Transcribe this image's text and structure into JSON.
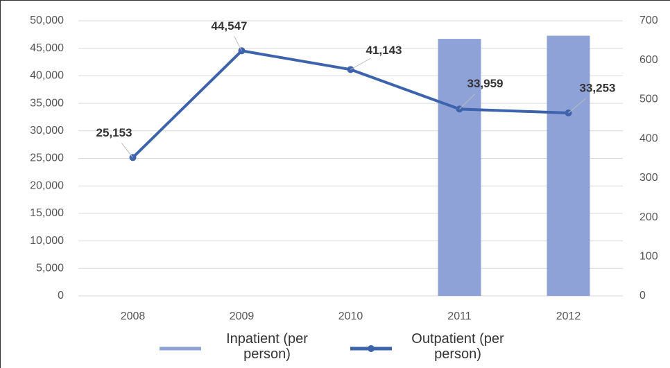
{
  "chart_data": {
    "type": "bar-line",
    "categories": [
      "2008",
      "2009",
      "2010",
      "2011",
      "2012"
    ],
    "series": [
      {
        "name": "Inpatient (per person)",
        "type": "bar",
        "axis": "y2",
        "color": "#8ea2d8",
        "values": [
          null,
          null,
          null,
          654,
          662
        ]
      },
      {
        "name": "Outpatient (per person)",
        "type": "line",
        "color": "#3d63ad",
        "values": [
          25153,
          44547,
          41143,
          33959,
          33253
        ],
        "value_labels": [
          "25,153",
          "44,547",
          "41,143",
          "33,959",
          "33,253"
        ]
      }
    ],
    "ylim": [
      0,
      50000
    ],
    "yticks": [
      {
        "value": 0,
        "label": "0"
      },
      {
        "value": 5000,
        "label": "5,000"
      },
      {
        "value": 10000,
        "label": "10,000"
      },
      {
        "value": 15000,
        "label": "15,000"
      },
      {
        "value": 20000,
        "label": "20,000"
      },
      {
        "value": 25000,
        "label": "25,000"
      },
      {
        "value": 30000,
        "label": "30,000"
      },
      {
        "value": 35000,
        "label": "35,000"
      },
      {
        "value": 40000,
        "label": "40,000"
      },
      {
        "value": 45000,
        "label": "45,000"
      },
      {
        "value": 50000,
        "label": "50,000"
      }
    ],
    "y2lim": [
      0,
      700
    ],
    "y2ticks": [
      0,
      100,
      200,
      300,
      400,
      500,
      600,
      700
    ],
    "grid": true
  }
}
